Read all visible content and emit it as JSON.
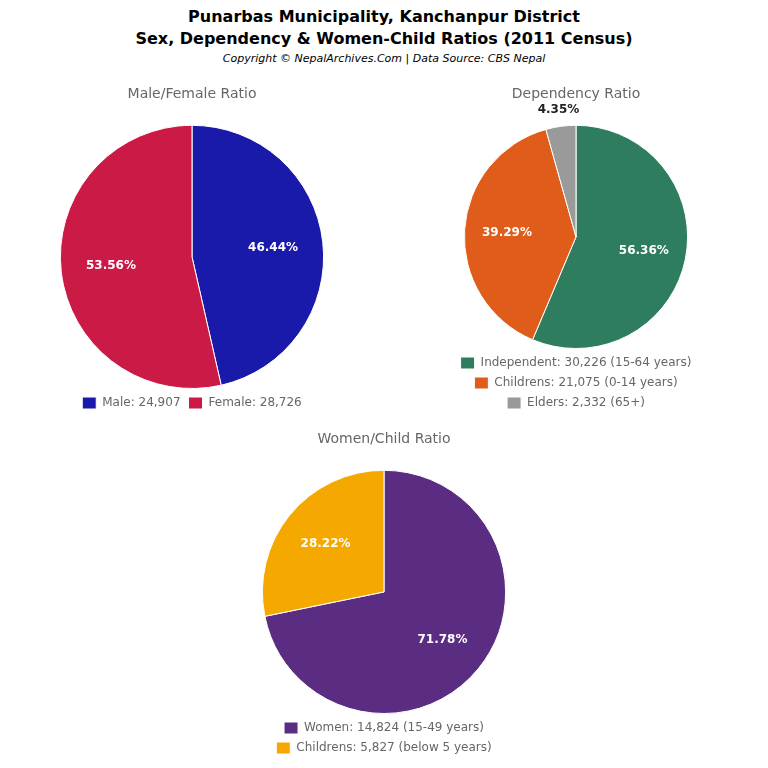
{
  "title": "Punarbas Municipality, Kanchanpur District",
  "subtitle": "Sex, Dependency & Women-Child Ratios (2011 Census)",
  "annotations": [
    "Copyright © NepalArchives.Com | Data Source: CBS Nepal"
  ],
  "chart_data": [
    {
      "type": "pie",
      "title": "Male/Female Ratio",
      "categories": [
        "Male: 24,907",
        "Female: 28,726"
      ],
      "values": [
        46.44,
        53.56
      ],
      "value_labels": [
        "46.44%",
        "53.56%"
      ],
      "colors": [
        "#1a1aaa",
        "#cc1a47"
      ],
      "data_labels": true,
      "legend": "bottom"
    },
    {
      "type": "pie",
      "title": "Dependency Ratio",
      "categories": [
        "Independent: 30,226 (15-64 years)",
        "Childrens: 21,075 (0-14 years)",
        "Elders: 2,332 (65+)"
      ],
      "values": [
        56.36,
        39.29,
        4.35
      ],
      "value_labels": [
        "56.36%",
        "39.29%",
        "4.35%"
      ],
      "colors": [
        "#2e7d5e",
        "#e05c1a",
        "#9a9a9a"
      ],
      "data_labels": true,
      "legend": "bottom"
    },
    {
      "type": "pie",
      "title": "Women/Child Ratio",
      "categories": [
        "Women: 14,824 (15-49 years)",
        "Childrens: 5,827 (below 5 years)"
      ],
      "values": [
        71.78,
        28.22
      ],
      "value_labels": [
        "71.78%",
        "28.22%"
      ],
      "colors": [
        "#5a2d82",
        "#f5a800"
      ],
      "data_labels": true,
      "legend": "bottom"
    }
  ]
}
